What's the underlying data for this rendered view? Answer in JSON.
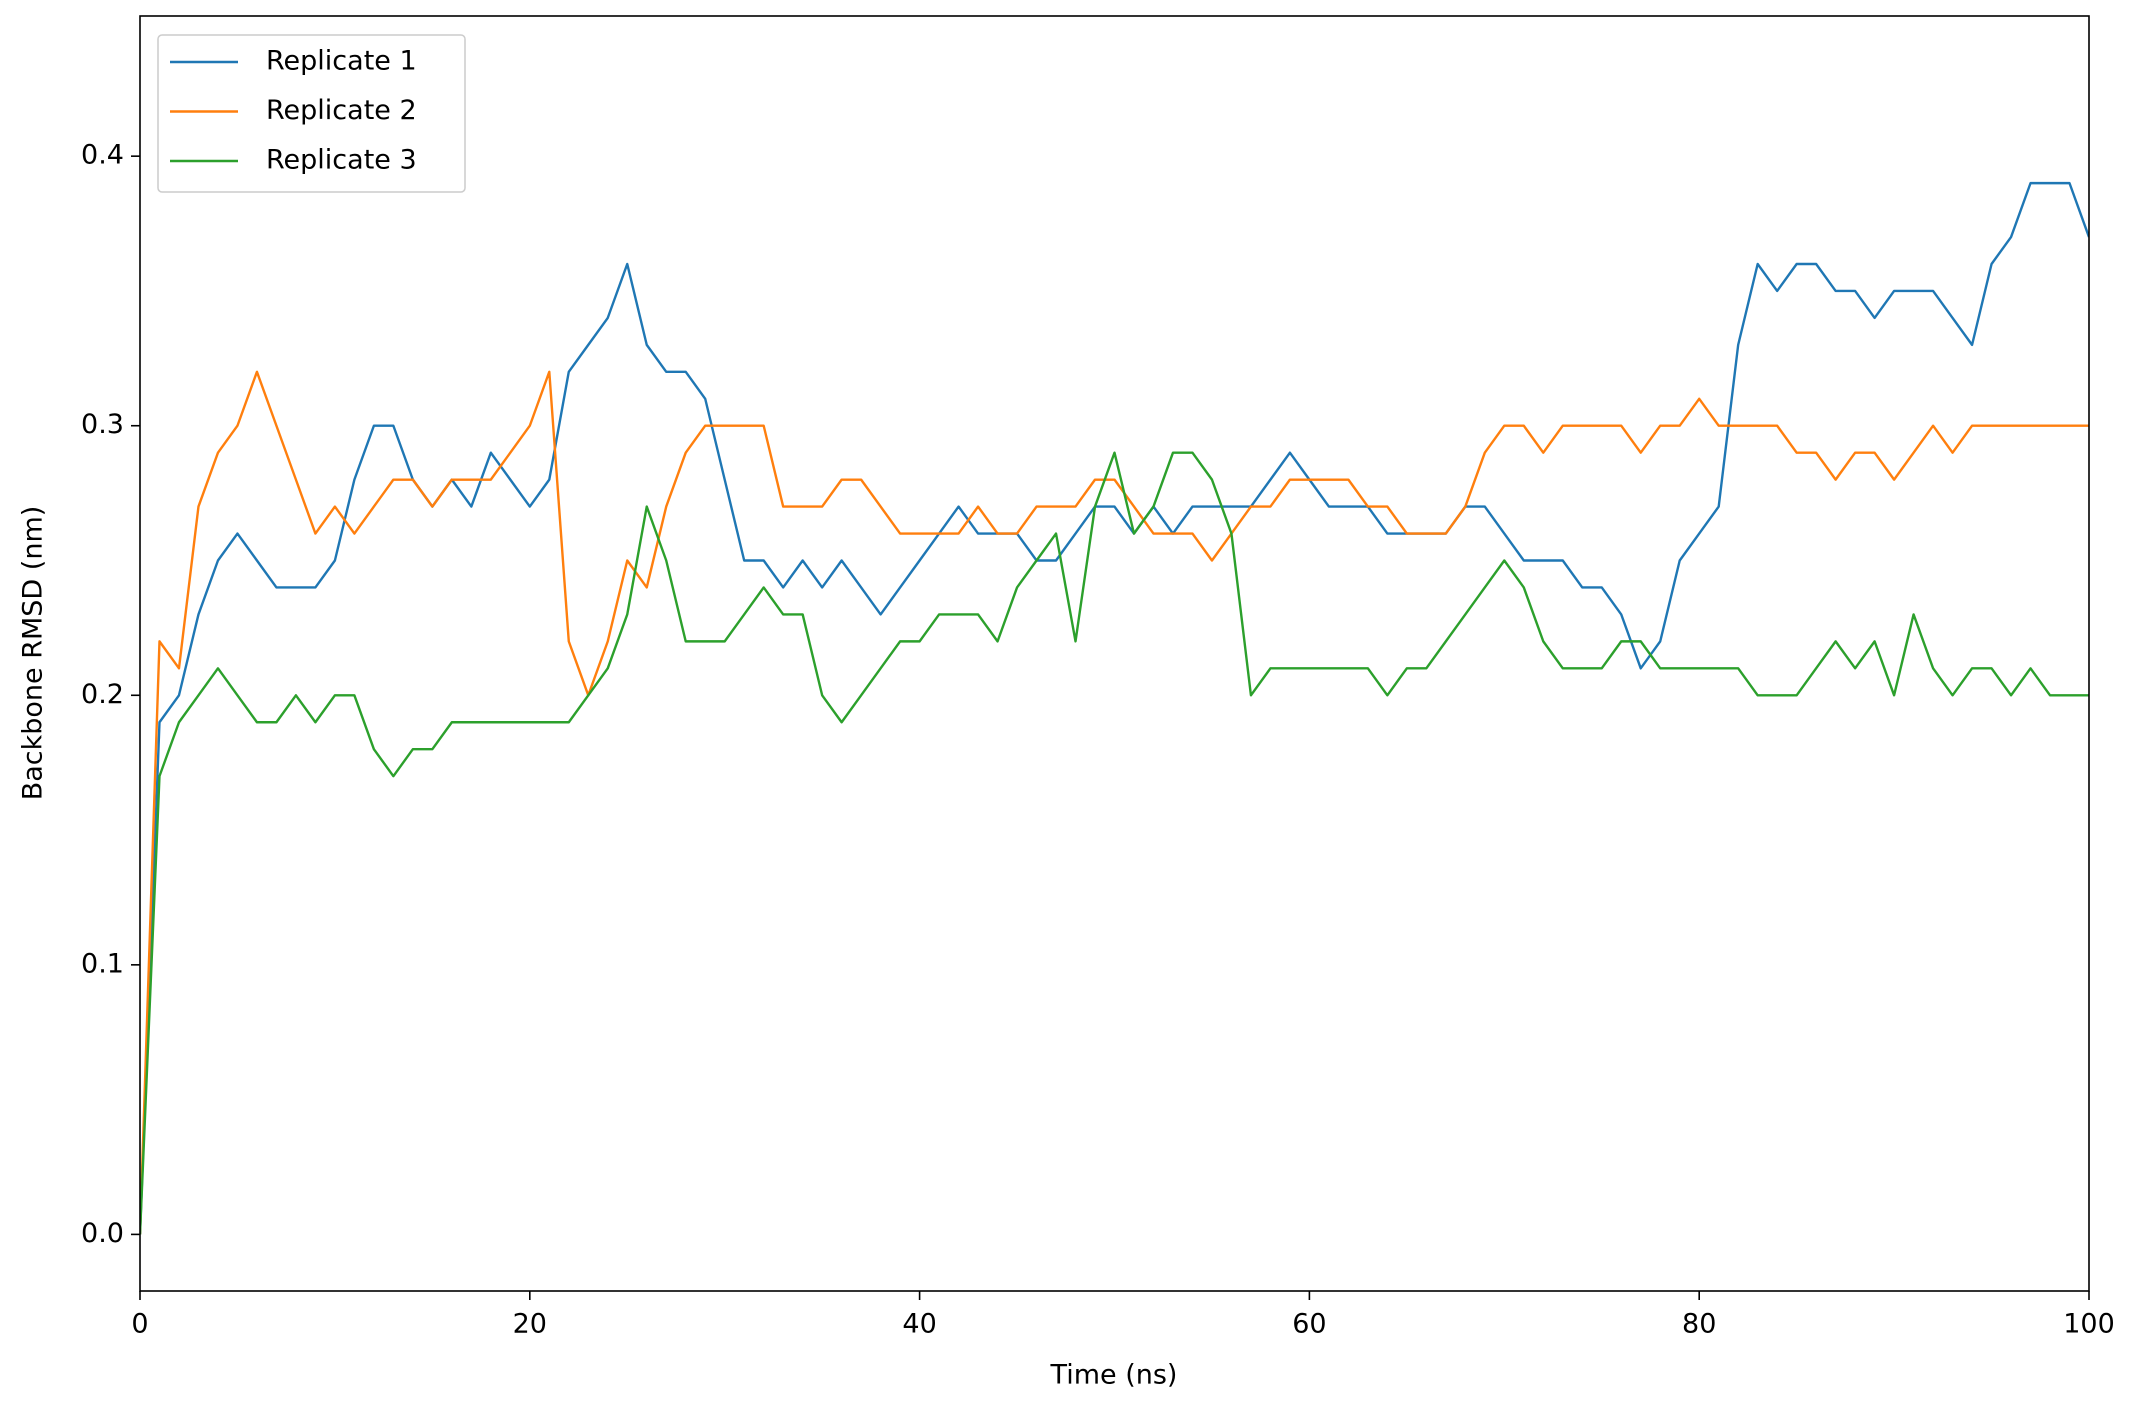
{
  "chart_data": {
    "type": "line",
    "xlabel": "Time (ns)",
    "ylabel": "Backbone RMSD (nm)",
    "x": [
      0,
      1,
      2,
      3,
      4,
      5,
      6,
      7,
      8,
      9,
      10,
      11,
      12,
      13,
      14,
      15,
      16,
      17,
      18,
      19,
      20,
      21,
      22,
      23,
      24,
      25,
      26,
      27,
      28,
      29,
      30,
      31,
      32,
      33,
      34,
      35,
      36,
      37,
      38,
      39,
      40,
      41,
      42,
      43,
      44,
      45,
      46,
      47,
      48,
      49,
      50,
      51,
      52,
      53,
      54,
      55,
      56,
      57,
      58,
      59,
      60,
      61,
      62,
      63,
      64,
      65,
      66,
      67,
      68,
      69,
      70,
      71,
      72,
      73,
      74,
      75,
      76,
      77,
      78,
      79,
      80,
      81,
      82,
      83,
      84,
      85,
      86,
      87,
      88,
      89,
      90,
      91,
      92,
      93,
      94,
      95,
      96,
      97,
      98,
      99,
      100
    ],
    "series": [
      {
        "name": "Replicate 1",
        "color": "#1f77b4",
        "values": [
          0.0,
          0.19,
          0.2,
          0.23,
          0.25,
          0.26,
          0.25,
          0.24,
          0.24,
          0.24,
          0.25,
          0.28,
          0.3,
          0.3,
          0.28,
          0.27,
          0.28,
          0.27,
          0.29,
          0.28,
          0.27,
          0.28,
          0.32,
          0.33,
          0.34,
          0.36,
          0.33,
          0.32,
          0.32,
          0.31,
          0.28,
          0.25,
          0.25,
          0.24,
          0.25,
          0.24,
          0.25,
          0.24,
          0.23,
          0.24,
          0.25,
          0.26,
          0.27,
          0.26,
          0.26,
          0.26,
          0.25,
          0.25,
          0.26,
          0.27,
          0.27,
          0.26,
          0.27,
          0.26,
          0.27,
          0.27,
          0.27,
          0.27,
          0.28,
          0.29,
          0.28,
          0.27,
          0.27,
          0.27,
          0.26,
          0.26,
          0.26,
          0.26,
          0.27,
          0.27,
          0.26,
          0.25,
          0.25,
          0.25,
          0.24,
          0.24,
          0.23,
          0.21,
          0.22,
          0.25,
          0.26,
          0.27,
          0.33,
          0.36,
          0.35,
          0.36,
          0.36,
          0.35,
          0.35,
          0.34,
          0.35,
          0.35,
          0.35,
          0.34,
          0.33,
          0.36,
          0.37,
          0.39,
          0.39,
          0.39,
          0.37
        ]
      },
      {
        "name": "Replicate 2",
        "color": "#ff7f0e",
        "values": [
          0.0,
          0.22,
          0.21,
          0.27,
          0.29,
          0.3,
          0.32,
          0.3,
          0.28,
          0.26,
          0.27,
          0.26,
          0.27,
          0.28,
          0.28,
          0.27,
          0.28,
          0.28,
          0.28,
          0.29,
          0.3,
          0.32,
          0.22,
          0.2,
          0.22,
          0.25,
          0.24,
          0.27,
          0.29,
          0.3,
          0.3,
          0.3,
          0.3,
          0.27,
          0.27,
          0.27,
          0.28,
          0.28,
          0.27,
          0.26,
          0.26,
          0.26,
          0.26,
          0.27,
          0.26,
          0.26,
          0.27,
          0.27,
          0.27,
          0.28,
          0.28,
          0.27,
          0.26,
          0.26,
          0.26,
          0.25,
          0.26,
          0.27,
          0.27,
          0.28,
          0.28,
          0.28,
          0.28,
          0.27,
          0.27,
          0.26,
          0.26,
          0.26,
          0.27,
          0.29,
          0.3,
          0.3,
          0.29,
          0.3,
          0.3,
          0.3,
          0.3,
          0.29,
          0.3,
          0.3,
          0.31,
          0.3,
          0.3,
          0.3,
          0.3,
          0.29,
          0.29,
          0.28,
          0.29,
          0.29,
          0.28,
          0.29,
          0.3,
          0.29,
          0.3,
          0.3,
          0.3,
          0.3,
          0.3,
          0.3,
          0.3
        ]
      },
      {
        "name": "Replicate 3",
        "color": "#2ca02c",
        "values": [
          0.0,
          0.17,
          0.19,
          0.2,
          0.21,
          0.2,
          0.19,
          0.19,
          0.2,
          0.19,
          0.2,
          0.2,
          0.18,
          0.17,
          0.18,
          0.18,
          0.19,
          0.19,
          0.19,
          0.19,
          0.19,
          0.19,
          0.19,
          0.2,
          0.21,
          0.23,
          0.27,
          0.25,
          0.22,
          0.22,
          0.22,
          0.23,
          0.24,
          0.23,
          0.23,
          0.2,
          0.19,
          0.2,
          0.21,
          0.22,
          0.22,
          0.23,
          0.23,
          0.23,
          0.22,
          0.24,
          0.25,
          0.26,
          0.22,
          0.27,
          0.29,
          0.26,
          0.27,
          0.29,
          0.29,
          0.28,
          0.26,
          0.2,
          0.21,
          0.21,
          0.21,
          0.21,
          0.21,
          0.21,
          0.2,
          0.21,
          0.21,
          0.22,
          0.23,
          0.24,
          0.25,
          0.24,
          0.22,
          0.21,
          0.21,
          0.21,
          0.22,
          0.22,
          0.21,
          0.21,
          0.21,
          0.21,
          0.21,
          0.2,
          0.2,
          0.2,
          0.21,
          0.22,
          0.21,
          0.22,
          0.2,
          0.23,
          0.21,
          0.2,
          0.21,
          0.21,
          0.2,
          0.21,
          0.2,
          0.2,
          0.2
        ]
      }
    ],
    "xlim": [
      0,
      100
    ],
    "ylim": [
      -0.021,
      0.452
    ],
    "xticks": [
      0,
      20,
      40,
      60,
      80,
      100
    ],
    "yticks": [
      {
        "value": 0,
        "label": "0.0"
      },
      0.1,
      0.2,
      0.3,
      0.4
    ],
    "legend": "upper left",
    "grid": false
  }
}
